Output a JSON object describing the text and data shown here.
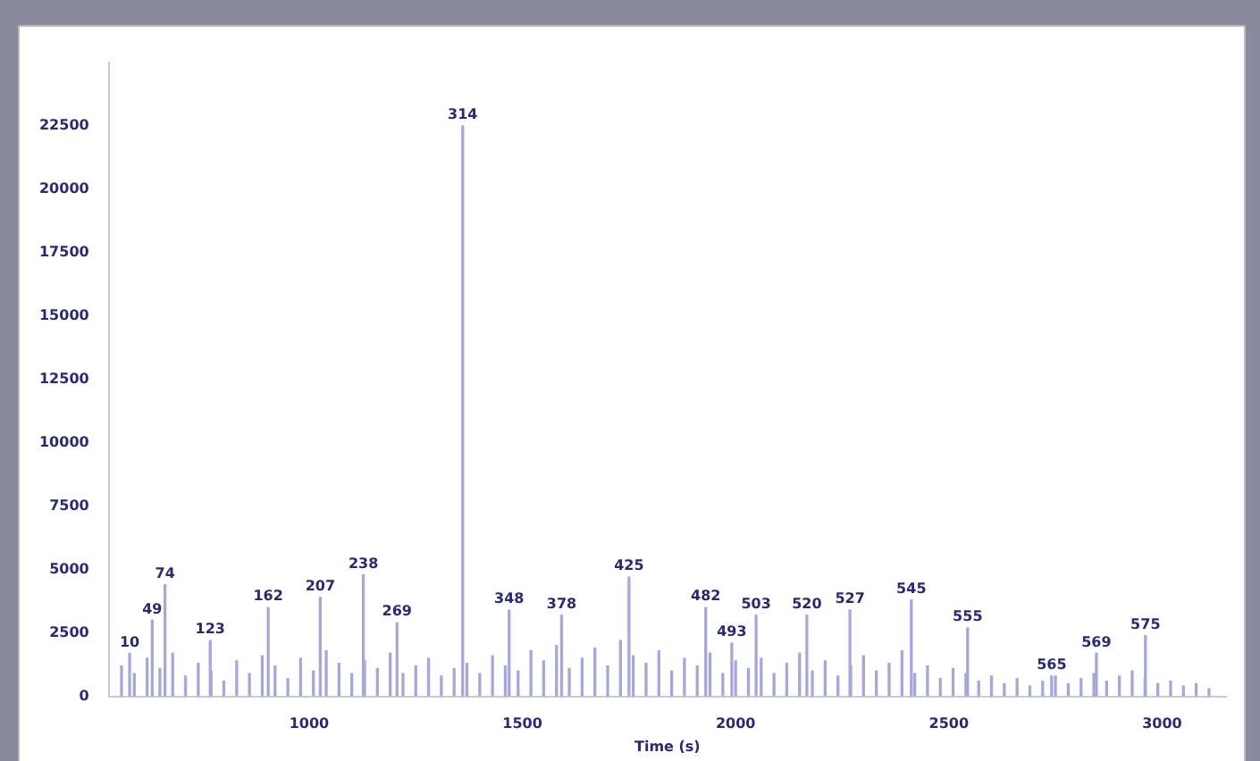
{
  "chart_data": {
    "type": "bar",
    "xlabel": "Time (s)",
    "xlim": [
      530,
      3150
    ],
    "xticks": [
      1000,
      1500,
      2000,
      2500,
      3000
    ],
    "ylim": [
      0,
      25000
    ],
    "yticks": [
      0,
      2500,
      5000,
      7500,
      10000,
      12500,
      15000,
      17500,
      20000,
      22500
    ],
    "grid": false,
    "legend": false,
    "series": [
      {
        "color": "#a8a8d8",
        "x": [
          560,
          590,
          620,
          650,
          680,
          710,
          740,
          770,
          800,
          830,
          860,
          890,
          920,
          950,
          980,
          1010,
          1040,
          1070,
          1100,
          1130,
          1160,
          1190,
          1220,
          1250,
          1280,
          1310,
          1340,
          1370,
          1400,
          1430,
          1460,
          1490,
          1520,
          1550,
          1580,
          1610,
          1640,
          1670,
          1700,
          1730,
          1760,
          1790,
          1820,
          1850,
          1880,
          1910,
          1940,
          1970,
          2000,
          2030,
          2060,
          2090,
          2120,
          2150,
          2180,
          2210,
          2240,
          2270,
          2300,
          2330,
          2360,
          2390,
          2420,
          2450,
          2480,
          2510,
          2540,
          2570,
          2600,
          2630,
          2660,
          2690,
          2720,
          2750,
          2780,
          2810,
          2840,
          2870,
          2900,
          2930,
          2960,
          2990,
          3020,
          3050,
          3080,
          3110
        ],
        "values": [
          1200,
          900,
          1500,
          1100,
          1700,
          800,
          1300,
          1000,
          600,
          1400,
          900,
          1600,
          1200,
          700,
          1500,
          1000,
          1800,
          1300,
          900,
          1400,
          1100,
          1700,
          900,
          1200,
          1500,
          800,
          1100,
          1300,
          900,
          1600,
          1200,
          1000,
          1800,
          1400,
          2000,
          1100,
          1500,
          1900,
          1200,
          2200,
          1600,
          1300,
          1800,
          1000,
          1500,
          1200,
          1700,
          900,
          1400,
          1100,
          1500,
          900,
          1300,
          1700,
          1000,
          1400,
          800,
          1200,
          1600,
          1000,
          1300,
          1800,
          900,
          1200,
          700,
          1100,
          900,
          600,
          800,
          500,
          700,
          400,
          600,
          800,
          500,
          700,
          900,
          600,
          800,
          1000,
          700,
          500,
          600,
          400,
          500,
          300
        ]
      },
      {
        "color": "#a8a8d8",
        "x": [
          579,
          632,
          662,
          768,
          904,
          1026,
          1127,
          1206,
          1360,
          1469,
          1592,
          1750,
          1930,
          1991,
          2048,
          2167,
          2268,
          2412,
          2544,
          2741,
          2846,
          2961
        ],
        "values": [
          1700,
          3000,
          4400,
          2200,
          3500,
          3900,
          4800,
          2900,
          22500,
          3400,
          3200,
          4700,
          3500,
          2100,
          3200,
          3200,
          3400,
          3800,
          2700,
          800,
          1700,
          2400
        ]
      }
    ],
    "annotations": [
      {
        "text": "10",
        "x": 579,
        "y": 1700
      },
      {
        "text": "49",
        "x": 632,
        "y": 3000
      },
      {
        "text": "74",
        "x": 662,
        "y": 4400
      },
      {
        "text": "123",
        "x": 768,
        "y": 2200
      },
      {
        "text": "162",
        "x": 904,
        "y": 3500
      },
      {
        "text": "207",
        "x": 1026,
        "y": 3900
      },
      {
        "text": "238",
        "x": 1127,
        "y": 4800
      },
      {
        "text": "269",
        "x": 1206,
        "y": 2900
      },
      {
        "text": "314",
        "x": 1360,
        "y": 22500
      },
      {
        "text": "348",
        "x": 1469,
        "y": 3400
      },
      {
        "text": "378",
        "x": 1592,
        "y": 3200
      },
      {
        "text": "425",
        "x": 1750,
        "y": 4700
      },
      {
        "text": "482",
        "x": 1930,
        "y": 3500
      },
      {
        "text": "493",
        "x": 1991,
        "y": 2100
      },
      {
        "text": "503",
        "x": 2048,
        "y": 3200
      },
      {
        "text": "520",
        "x": 2167,
        "y": 3200
      },
      {
        "text": "527",
        "x": 2268,
        "y": 3400
      },
      {
        "text": "545",
        "x": 2412,
        "y": 3800
      },
      {
        "text": "555",
        "x": 2544,
        "y": 2700
      },
      {
        "text": "565",
        "x": 2741,
        "y": 800
      },
      {
        "text": "569",
        "x": 2846,
        "y": 1700
      },
      {
        "text": "575",
        "x": 2961,
        "y": 2400
      }
    ]
  }
}
